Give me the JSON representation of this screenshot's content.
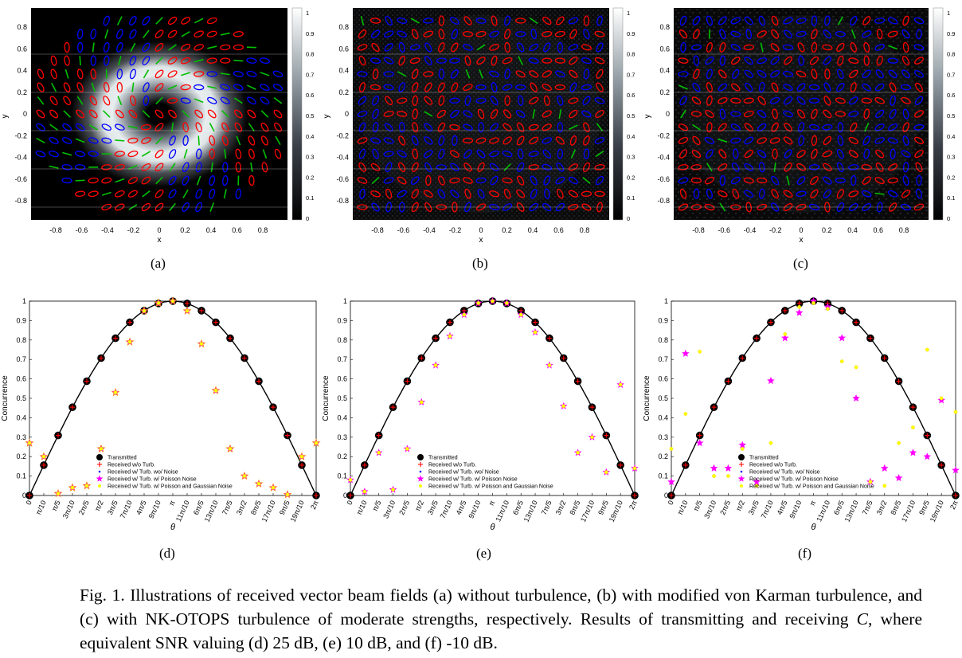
{
  "figure": {
    "caption": {
      "prefix": "Fig. 1. Illustrations of received vector beam fields (a) without turbulence, (b) with modified von Karman turbulence, and (c) with NK-OTOPS turbulence of moderate strengths, respectively. Results of transmitting and receiving ",
      "symbol": "C",
      "suffix": ", where equivalent SNR valuing (d) 25 dB, (e) 10 dB, and (f) -10 dB."
    },
    "field_panels": [
      {
        "label": "(a)",
        "variant": "clean"
      },
      {
        "label": "(b)",
        "variant": "vonKarman"
      },
      {
        "label": "(c)",
        "variant": "otops"
      }
    ],
    "field_axes": {
      "xlabel": "x",
      "ylabel": "y",
      "ticks": [
        "-0.8",
        "-0.6",
        "-0.4",
        "-0.2",
        "0",
        "0.2",
        "0.4",
        "0.6",
        "0.8"
      ],
      "colorbar_ticks": [
        "0",
        "0.1",
        "0.2",
        "0.3",
        "0.4",
        "0.5",
        "0.6",
        "0.7",
        "0.8",
        "0.9",
        "1"
      ]
    },
    "colors": {
      "red": "#ff0000",
      "blue": "#0000ff",
      "green": "#00c000",
      "magenta": "#ff00ff",
      "yellow": "#ffff00",
      "orange": "#ff9900"
    }
  },
  "chart_data": [
    {
      "type": "scatter",
      "panel_label": "(d)",
      "xlabel": "θ",
      "ylabel": "Concurrence",
      "ylim": [
        0,
        1
      ],
      "yticks": [
        "0",
        "0.1",
        "0.2",
        "0.3",
        "0.4",
        "0.5",
        "0.6",
        "0.7",
        "0.8",
        "0.9",
        "1"
      ],
      "x_ticklabels": [
        "0",
        "π/10",
        "π/5",
        "3π/10",
        "2π/5",
        "π/2",
        "3π/5",
        "7π/10",
        "4π/5",
        "9π/10",
        "π",
        "11π/10",
        "6π/5",
        "13π/10",
        "7π/5",
        "3π/2",
        "8π/5",
        "17π/10",
        "9π/5",
        "19π/10",
        "2π"
      ],
      "legend": [
        "Transmitted",
        "Received w/o Turb.",
        "Received w/ Turb. wo/ Noise",
        "Received w/ Turb. w/ Poisson Noise",
        "Received w/ Turb. w/ Poisson and Gaussian Noise"
      ],
      "legend_position": "lower-left",
      "series": [
        {
          "name": "Transmitted",
          "values": [
            0,
            0.156,
            0.309,
            0.454,
            0.588,
            0.707,
            0.809,
            0.891,
            0.951,
            0.988,
            1,
            0.988,
            0.951,
            0.891,
            0.809,
            0.707,
            0.588,
            0.454,
            0.309,
            0.156,
            0
          ]
        },
        {
          "name": "Received w/o Turb.",
          "values": [
            0,
            0.156,
            0.309,
            0.454,
            0.588,
            0.707,
            0.809,
            0.891,
            0.951,
            0.988,
            1,
            0.988,
            0.951,
            0.891,
            0.809,
            0.707,
            0.588,
            0.454,
            0.309,
            0.156,
            0
          ]
        },
        {
          "name": "Received w/ Turb. wo/ Noise",
          "values": [
            0.27,
            0.2,
            0.01,
            0.04,
            0.05,
            0.24,
            0.53,
            0.79,
            0.95,
            0.99,
            1,
            0.95,
            0.78,
            0.54,
            0.24,
            0.1,
            0.06,
            0.04,
            0.005,
            0.2,
            0.27
          ]
        },
        {
          "name": "Received w/ Turb. w/ Poisson Noise",
          "values": [
            0.27,
            0.2,
            0.01,
            0.04,
            0.05,
            0.24,
            0.53,
            0.79,
            0.95,
            0.99,
            1,
            0.95,
            0.78,
            0.54,
            0.24,
            0.1,
            0.06,
            0.04,
            0.005,
            0.2,
            0.27
          ]
        },
        {
          "name": "Received w/ Turb. w/ Poisson and Gaussian Noise",
          "values": [
            0.27,
            0.2,
            0.01,
            0.04,
            0.05,
            0.24,
            0.53,
            0.79,
            0.95,
            0.99,
            1,
            0.95,
            0.78,
            0.54,
            0.24,
            0.1,
            0.06,
            0.04,
            0.005,
            0.2,
            0.27
          ]
        }
      ]
    },
    {
      "type": "scatter",
      "panel_label": "(e)",
      "xlabel": "θ",
      "ylabel": "Concurrence",
      "ylim": [
        0,
        1
      ],
      "yticks": [
        "0",
        "0.1",
        "0.2",
        "0.3",
        "0.4",
        "0.5",
        "0.6",
        "0.7",
        "0.8",
        "0.9",
        "1"
      ],
      "x_ticklabels": [
        "0",
        "π/10",
        "π/5",
        "3π/10",
        "2π/5",
        "π/2",
        "3π/5",
        "7π/10",
        "4π/5",
        "9π/10",
        "π",
        "11π/10",
        "6π/5",
        "13π/10",
        "7π/5",
        "3π/2",
        "8π/5",
        "17π/10",
        "9π/5",
        "19π/10",
        "2π"
      ],
      "legend": [
        "Transmitted",
        "Received w/o Turb.",
        "Received w/ Turb. wo/ Noise",
        "Received w/ Turb. w/ Poisson Noise",
        "Received w/ Turb. w/ Poisson and Gaussian Noise"
      ],
      "legend_position": "lower-left",
      "series": [
        {
          "name": "Transmitted",
          "values": [
            0,
            0.156,
            0.309,
            0.454,
            0.588,
            0.707,
            0.809,
            0.891,
            0.951,
            0.988,
            1,
            0.988,
            0.951,
            0.891,
            0.809,
            0.707,
            0.588,
            0.454,
            0.309,
            0.156,
            0
          ]
        },
        {
          "name": "Received w/o Turb.",
          "values": [
            0,
            0.156,
            0.309,
            0.454,
            0.588,
            0.707,
            0.809,
            0.891,
            0.951,
            0.988,
            1,
            0.988,
            0.951,
            0.891,
            0.809,
            0.707,
            0.588,
            0.454,
            0.309,
            0.156,
            0
          ]
        },
        {
          "name": "Received w/ Turb. wo/ Noise",
          "values": [
            0.08,
            0.02,
            0.22,
            0.03,
            0.24,
            0.48,
            0.67,
            0.82,
            0.93,
            0.99,
            1,
            0.99,
            0.93,
            0.84,
            0.67,
            0.46,
            0.22,
            0.3,
            0.12,
            0.57,
            0.14
          ]
        },
        {
          "name": "Received w/ Turb. w/ Poisson Noise",
          "values": [
            0.08,
            0.02,
            0.22,
            0.03,
            0.24,
            0.48,
            0.67,
            0.82,
            0.93,
            0.99,
            1,
            0.99,
            0.93,
            0.84,
            0.67,
            0.46,
            0.22,
            0.3,
            0.12,
            0.57,
            0.14
          ]
        },
        {
          "name": "Received w/ Turb. w/ Poisson and Gaussian Noise",
          "values": [
            0.08,
            0.02,
            0.22,
            0.03,
            0.24,
            0.48,
            0.67,
            0.82,
            0.93,
            0.99,
            1,
            0.99,
            0.93,
            0.84,
            0.67,
            0.46,
            0.22,
            0.3,
            0.12,
            0.57,
            0.14
          ]
        }
      ]
    },
    {
      "type": "scatter",
      "panel_label": "(f)",
      "xlabel": "θ",
      "ylabel": "Concurrence",
      "ylim": [
        0,
        1
      ],
      "yticks": [
        "0",
        "0.1",
        "0.2",
        "0.3",
        "0.4",
        "0.5",
        "0.6",
        "0.7",
        "0.8",
        "0.9",
        "1"
      ],
      "x_ticklabels": [
        "0",
        "π/10",
        "π/5",
        "3π/10",
        "2π/5",
        "π/2",
        "3π/5",
        "7π/10",
        "4π/5",
        "9π/10",
        "π",
        "11π/10",
        "6π/5",
        "13π/10",
        "7π/5",
        "3π/2",
        "8π/5",
        "17π/10",
        "9π/5",
        "19π/10",
        "2π"
      ],
      "legend": [
        "Transmitted",
        "Received w/o Turb.",
        "Received w/ Turb. wo/ Noise",
        "Received w/ Turb. w/ Poisson Noise",
        "Received w/ Turb. w/ Poisson and Gaussian Noise"
      ],
      "legend_position": "lower-left",
      "series": [
        {
          "name": "Transmitted",
          "values": [
            0,
            0.156,
            0.309,
            0.454,
            0.588,
            0.707,
            0.809,
            0.891,
            0.951,
            0.988,
            1,
            0.988,
            0.951,
            0.891,
            0.809,
            0.707,
            0.588,
            0.454,
            0.309,
            0.156,
            0
          ]
        },
        {
          "name": "Received w/o Turb.",
          "values": [
            0,
            0.156,
            0.309,
            0.454,
            0.588,
            0.707,
            0.809,
            0.891,
            0.951,
            0.988,
            1,
            0.988,
            0.951,
            0.891,
            0.809,
            0.707,
            0.588,
            0.454,
            0.309,
            0.156,
            0
          ]
        },
        {
          "name": "Received w/ Turb. wo/ Noise",
          "values": [
            0.07,
            0.73,
            0.27,
            0.14,
            0.14,
            0.26,
            0.07,
            0.59,
            0.81,
            0.94,
            1,
            0.97,
            0.81,
            0.5,
            0.07,
            0.14,
            0.09,
            0.22,
            0.2,
            0.49,
            0.13
          ]
        },
        {
          "name": "Received w/ Turb. w/ Poisson Noise",
          "values": [
            0.07,
            0.73,
            0.27,
            0.14,
            0.14,
            0.26,
            0.07,
            0.59,
            0.81,
            0.94,
            1,
            0.97,
            0.81,
            0.5,
            0.07,
            0.14,
            0.09,
            0.22,
            0.2,
            0.49,
            0.13
          ]
        },
        {
          "name": "Received w/ Turb. w/ Poisson and Gaussian Noise",
          "values": [
            0.24,
            0.42,
            0.74,
            0.1,
            0.1,
            0.24,
            0.05,
            0.27,
            0.83,
            0.97,
            0.99,
            0.96,
            0.69,
            0.66,
            0.07,
            0.05,
            0.27,
            0.35,
            0.75,
            0.5,
            0.43
          ]
        }
      ]
    }
  ]
}
